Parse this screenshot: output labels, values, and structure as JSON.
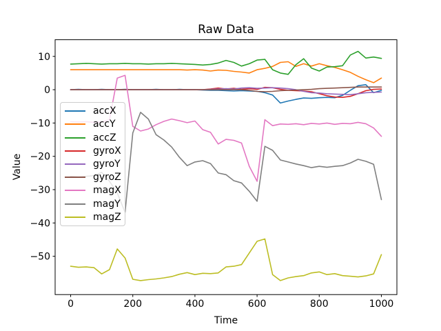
{
  "figure": {
    "title": "Raw Data",
    "background": "#ffffff"
  },
  "chart_data": {
    "type": "line",
    "title": "Raw Data",
    "xlabel": "Time",
    "ylabel": "Value",
    "grid": false,
    "legend_position": "upper-left-inside",
    "xlim": [
      -50,
      1050
    ],
    "ylim": [
      -61.5,
      15
    ],
    "xticks": [
      0,
      200,
      400,
      600,
      800,
      1000
    ],
    "xtick_labels": [
      "0",
      "200",
      "400",
      "600",
      "800",
      "1000"
    ],
    "yticks": [
      10,
      0,
      -10,
      -20,
      -30,
      -40,
      -50
    ],
    "ytick_labels": [
      "10",
      "0",
      "−10",
      "−20",
      "−30",
      "−40",
      "−50"
    ],
    "x": [
      0,
      25,
      50,
      75,
      100,
      125,
      150,
      175,
      200,
      225,
      250,
      275,
      300,
      325,
      350,
      375,
      400,
      425,
      450,
      475,
      500,
      525,
      550,
      575,
      600,
      625,
      650,
      675,
      700,
      725,
      750,
      775,
      800,
      825,
      850,
      875,
      900,
      925,
      950,
      975,
      1000
    ],
    "series": [
      {
        "name": "accX",
        "color": "#1f77b4",
        "values": [
          0.0,
          0.1,
          0.0,
          0.0,
          0.1,
          0.0,
          0.0,
          0.1,
          0.0,
          0.0,
          0.0,
          0.1,
          0.0,
          0.0,
          0.1,
          0.0,
          0.0,
          -0.1,
          -0.2,
          -0.2,
          -0.3,
          -0.4,
          -0.3,
          -0.4,
          -0.5,
          -0.9,
          -1.6,
          -4.0,
          -3.4,
          -2.9,
          -2.5,
          -2.6,
          -2.4,
          -2.3,
          -2.4,
          -1.7,
          -0.2,
          1.2,
          1.5,
          -0.9,
          -0.2
        ]
      },
      {
        "name": "accY",
        "color": "#ff7f0e",
        "values": [
          6.0,
          6.0,
          6.0,
          6.0,
          6.0,
          6.0,
          6.0,
          6.0,
          6.0,
          6.0,
          6.0,
          6.0,
          6.0,
          6.0,
          6.0,
          5.9,
          6.0,
          5.9,
          5.6,
          5.9,
          5.8,
          5.5,
          5.3,
          5.0,
          6.0,
          6.4,
          7.0,
          8.2,
          8.4,
          7.0,
          7.8,
          7.1,
          7.8,
          7.2,
          6.7,
          6.0,
          5.2,
          4.0,
          3.0,
          2.1,
          3.5
        ]
      },
      {
        "name": "accZ",
        "color": "#2ca02c",
        "values": [
          7.7,
          7.8,
          7.9,
          7.8,
          7.7,
          7.8,
          7.8,
          7.9,
          7.8,
          7.8,
          7.7,
          7.8,
          7.8,
          7.9,
          7.8,
          7.7,
          7.6,
          7.4,
          7.6,
          8.0,
          8.8,
          8.2,
          7.1,
          7.8,
          8.9,
          9.1,
          6.0,
          5.0,
          4.6,
          7.5,
          9.3,
          6.5,
          5.6,
          6.8,
          6.9,
          7.2,
          10.4,
          11.5,
          9.5,
          9.8,
          9.4
        ]
      },
      {
        "name": "gyroX",
        "color": "#d62728",
        "values": [
          0.0,
          0.0,
          0.0,
          0.0,
          0.0,
          0.0,
          0.0,
          0.0,
          0.0,
          0.0,
          0.0,
          0.0,
          0.0,
          0.0,
          0.0,
          0.0,
          0.0,
          0.0,
          0.2,
          0.5,
          0.2,
          0.4,
          0.1,
          0.3,
          0.1,
          0.7,
          0.6,
          0.1,
          -0.2,
          -0.3,
          -0.4,
          -0.6,
          -1.2,
          -1.8,
          -2.2,
          -2.3,
          -2.0,
          -1.2,
          -0.3,
          0.1,
          0.2
        ]
      },
      {
        "name": "gyroY",
        "color": "#9467bd",
        "values": [
          0.0,
          0.0,
          0.0,
          0.0,
          0.0,
          0.0,
          0.0,
          0.0,
          0.0,
          0.0,
          0.0,
          0.0,
          0.0,
          0.0,
          0.0,
          0.0,
          0.0,
          0.0,
          0.1,
          0.2,
          0.3,
          0.2,
          0.5,
          0.6,
          0.4,
          0.5,
          0.6,
          0.5,
          0.3,
          0.0,
          -0.5,
          -0.9,
          -1.0,
          -1.2,
          -1.3,
          -1.4,
          -1.5,
          -1.2,
          -0.9,
          -0.8,
          -0.7
        ]
      },
      {
        "name": "gyroZ",
        "color": "#8c564b",
        "values": [
          0.0,
          0.0,
          0.0,
          0.0,
          0.0,
          0.0,
          0.0,
          0.0,
          0.0,
          0.0,
          0.0,
          0.0,
          0.0,
          0.0,
          0.0,
          0.0,
          0.0,
          0.0,
          0.0,
          0.0,
          0.0,
          0.0,
          0.0,
          -0.2,
          -0.5,
          -0.6,
          -0.5,
          -0.3,
          -0.2,
          -0.1,
          0.0,
          0.1,
          0.3,
          0.4,
          0.5,
          0.6,
          0.7,
          0.8,
          0.8,
          0.8,
          0.8
        ]
      },
      {
        "name": "magX",
        "color": "#e377c2",
        "values": [
          -9.6,
          -9.7,
          -9.6,
          -9.8,
          -9.7,
          -9.0,
          3.5,
          4.3,
          -11.0,
          -12.4,
          -11.8,
          -10.5,
          -9.5,
          -8.8,
          -9.3,
          -9.9,
          -9.4,
          -12.0,
          -12.8,
          -16.3,
          -14.9,
          -15.2,
          -16.0,
          -23.0,
          -27.5,
          -9.0,
          -10.8,
          -10.3,
          -10.4,
          -10.2,
          -10.5,
          -10.1,
          -10.3,
          -10.0,
          -10.4,
          -10.1,
          -10.2,
          -9.8,
          -10.2,
          -11.5,
          -14.0
        ]
      },
      {
        "name": "magY",
        "color": "#7f7f7f",
        "values": [
          -26.0,
          -26.2,
          -26.0,
          -25.8,
          -24.8,
          -27.5,
          -31.0,
          -36.8,
          -13.0,
          -6.8,
          -8.8,
          -13.5,
          -15.1,
          -17.2,
          -20.3,
          -22.8,
          -21.7,
          -21.3,
          -22.2,
          -25.0,
          -25.5,
          -27.3,
          -28.0,
          -30.5,
          -33.5,
          -17.0,
          -18.2,
          -21.1,
          -21.7,
          -22.3,
          -22.8,
          -23.4,
          -23.0,
          -23.3,
          -23.0,
          -22.8,
          -22.0,
          -20.9,
          -21.5,
          -22.4,
          -33.0
        ]
      },
      {
        "name": "magZ",
        "color": "#bcbd22",
        "values": [
          -53.0,
          -53.3,
          -53.2,
          -53.4,
          -55.3,
          -54.0,
          -47.8,
          -50.5,
          -56.9,
          -57.3,
          -57.0,
          -56.8,
          -56.5,
          -56.1,
          -55.4,
          -54.9,
          -55.5,
          -55.1,
          -55.2,
          -55.0,
          -53.2,
          -53.0,
          -52.5,
          -49.0,
          -45.5,
          -44.8,
          -55.5,
          -57.3,
          -56.5,
          -56.1,
          -55.8,
          -55.0,
          -54.7,
          -55.5,
          -55.2,
          -55.8,
          -56.0,
          -56.2,
          -55.9,
          -55.3,
          -49.5
        ]
      }
    ]
  }
}
